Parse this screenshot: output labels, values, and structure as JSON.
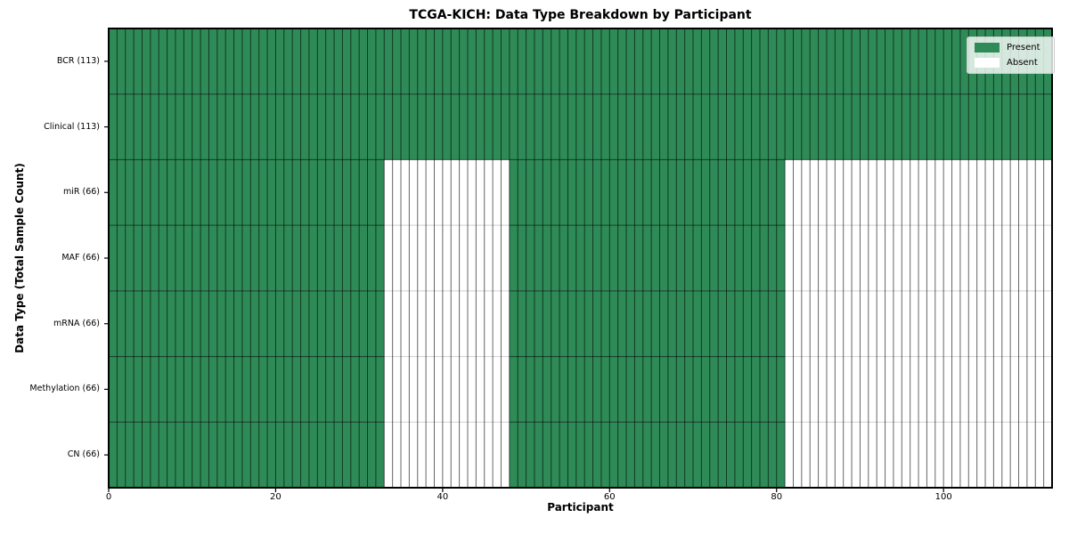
{
  "chart_data": {
    "type": "heatmap",
    "title": "TCGA-KICH: Data Type Breakdown by Participant",
    "xlabel": "Participant",
    "ylabel": "Data Type (Total Sample Count)",
    "xlim": [
      0,
      113
    ],
    "x_ticks": [
      0,
      20,
      40,
      60,
      80,
      100
    ],
    "n_participants": 113,
    "cell_states": [
      "Present",
      "Absent"
    ],
    "rows": [
      {
        "label": "BCR (113)",
        "data_type": "BCR",
        "total_samples": 113,
        "present_ranges": [
          [
            0,
            113
          ]
        ]
      },
      {
        "label": "Clinical (113)",
        "data_type": "Clinical",
        "total_samples": 113,
        "present_ranges": [
          [
            0,
            113
          ]
        ]
      },
      {
        "label": "miR (66)",
        "data_type": "miR",
        "total_samples": 66,
        "present_ranges": [
          [
            0,
            33
          ],
          [
            48,
            81
          ]
        ]
      },
      {
        "label": "MAF (66)",
        "data_type": "MAF",
        "total_samples": 66,
        "present_ranges": [
          [
            0,
            33
          ],
          [
            48,
            81
          ]
        ]
      },
      {
        "label": "mRNA (66)",
        "data_type": "mRNA",
        "total_samples": 66,
        "present_ranges": [
          [
            0,
            33
          ],
          [
            48,
            81
          ]
        ]
      },
      {
        "label": "Methylation (66)",
        "data_type": "Methylation",
        "total_samples": 66,
        "present_ranges": [
          [
            0,
            33
          ],
          [
            48,
            81
          ]
        ]
      },
      {
        "label": "CN (66)",
        "data_type": "CN",
        "total_samples": 66,
        "present_ranges": [
          [
            0,
            33
          ],
          [
            48,
            81
          ]
        ]
      }
    ],
    "legend": {
      "position": "upper right",
      "entries": [
        {
          "label": "Present",
          "color": "#2e8b57"
        },
        {
          "label": "Absent",
          "color": "#ffffff"
        }
      ]
    },
    "colors": {
      "present": "#2e8b57",
      "absent": "#ffffff",
      "grid_line_dark": "rgba(0,0,0,0.6)",
      "grid_line_light": "rgba(0,0,0,0.19)",
      "spine": "#000000"
    }
  }
}
